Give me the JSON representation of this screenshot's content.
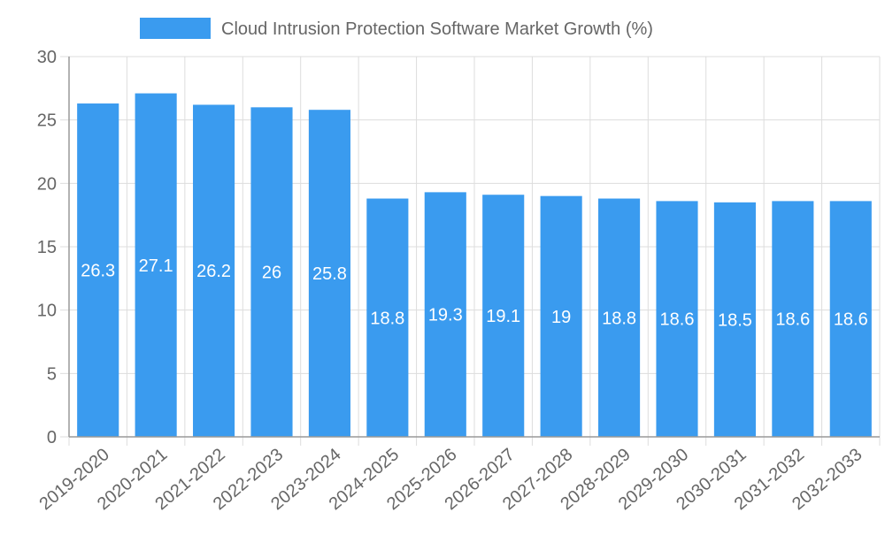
{
  "chart_data": {
    "type": "bar",
    "title": "",
    "xlabel": "",
    "ylabel": "",
    "ylim": [
      0,
      30
    ],
    "yticks": [
      0,
      5,
      10,
      15,
      20,
      25,
      30
    ],
    "grid": true,
    "legend_position": "top-center",
    "categories": [
      "2019-2020",
      "2020-2021",
      "2021-2022",
      "2022-2023",
      "2023-2024",
      "2024-2025",
      "2025-2026",
      "2026-2027",
      "2027-2028",
      "2028-2029",
      "2029-2030",
      "2030-2031",
      "2031-2032",
      "2032-2033"
    ],
    "series": [
      {
        "name": "Cloud Intrusion Protection Software Market Growth (%)",
        "values": [
          26.3,
          27.1,
          26.2,
          26,
          25.8,
          18.8,
          19.3,
          19.1,
          19,
          18.8,
          18.6,
          18.5,
          18.6,
          18.6
        ],
        "color": "#3a9bef"
      }
    ]
  }
}
